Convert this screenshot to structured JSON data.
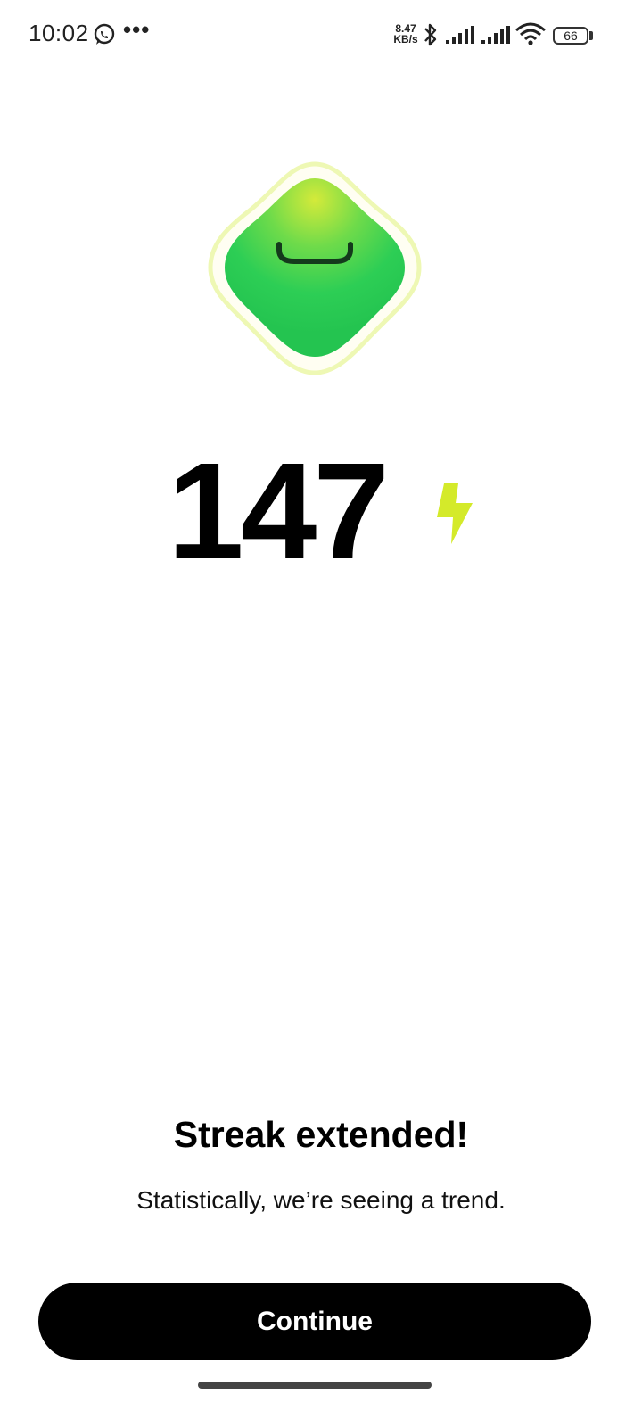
{
  "status_bar": {
    "time": "10:02",
    "dots": "•••",
    "speed_value": "8.47",
    "speed_unit": "KB/s",
    "battery": "66",
    "icons": [
      "whatsapp-icon",
      "bluetooth-icon",
      "signal-icon",
      "signal-icon",
      "wifi-icon",
      "battery-icon"
    ]
  },
  "streak": {
    "count": "147",
    "icon": "lightning-bolt-icon",
    "accent_color": "#d4ea2a"
  },
  "message": {
    "headline": "Streak extended!",
    "subline": "Statistically, we’re seeing a trend."
  },
  "button": {
    "continue_label": "Continue"
  },
  "colors": {
    "mascot_green": "#2dce55",
    "mascot_outline": "#eef8b4",
    "button_bg": "#000000"
  }
}
